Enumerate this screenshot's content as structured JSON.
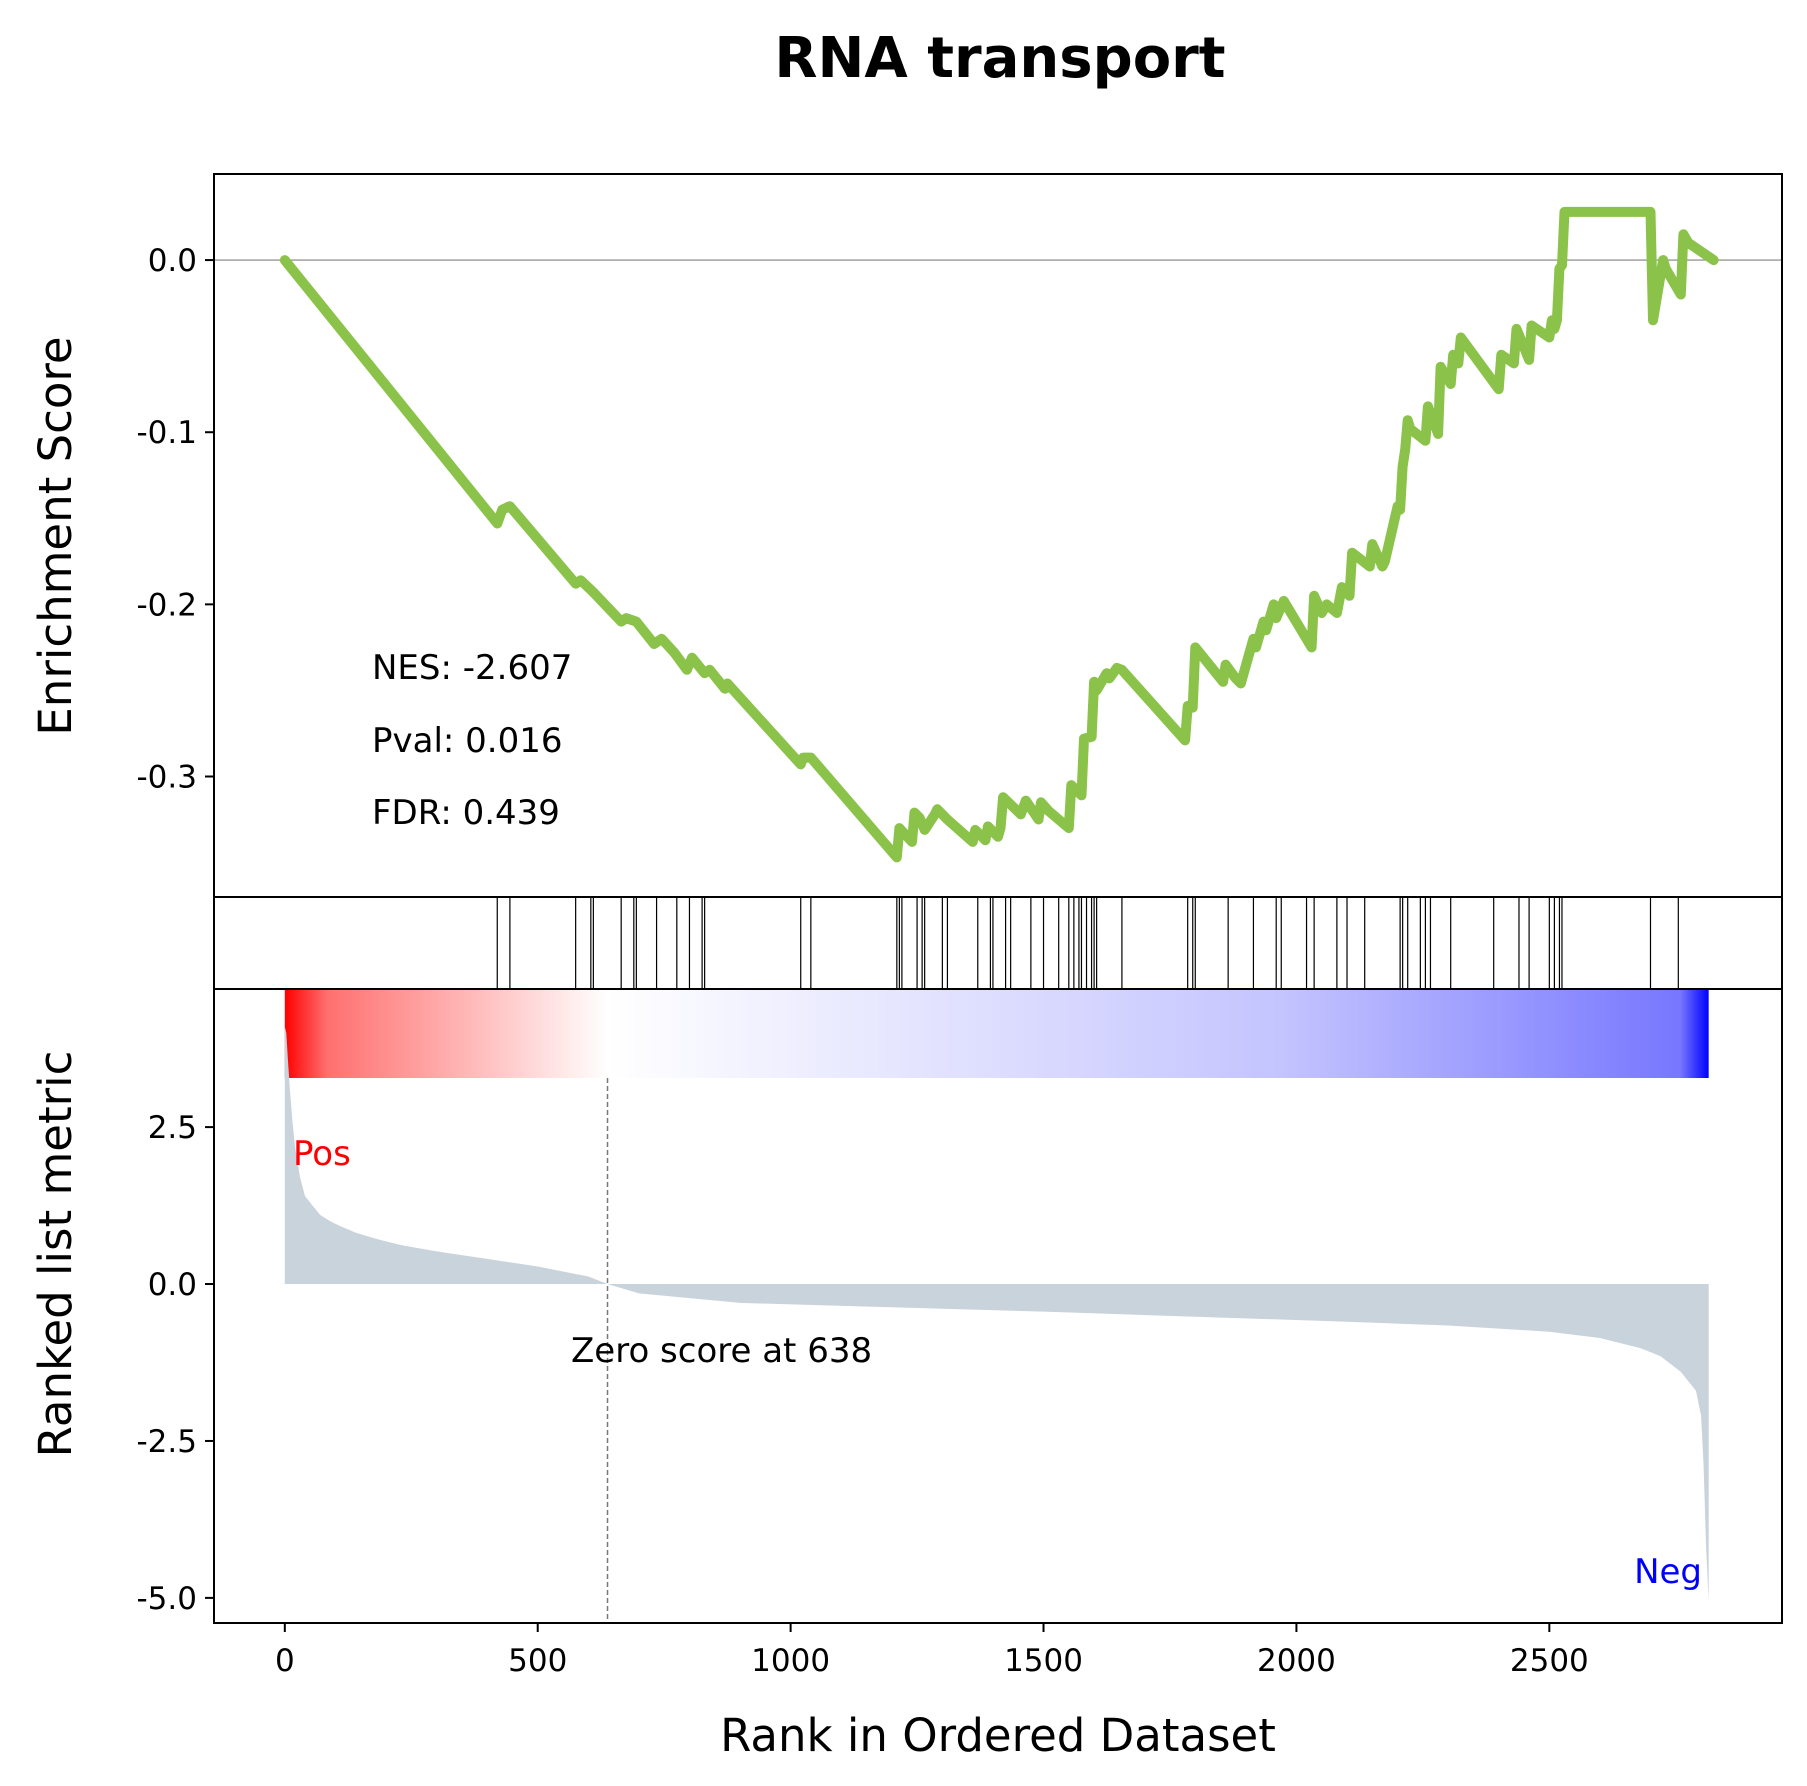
{
  "chart_data": {
    "type": "line",
    "title": "RNA transport",
    "xlabel": "Rank in Ordered Dataset",
    "xlim": [
      -140,
      2960
    ],
    "x_ticks": [
      0,
      500,
      1000,
      1500,
      2000,
      2500
    ],
    "es_panel": {
      "ylabel": "Enrichment Score",
      "ylim": [
        -0.37,
        0.05
      ],
      "y_ticks": [
        0.0,
        -0.1,
        -0.2,
        -0.3
      ],
      "y_tick_labels": [
        "0.0",
        "-0.1",
        "-0.2",
        "-0.3"
      ],
      "line_color": "#8bc34a",
      "series": [
        {
          "x": [
            0,
            420,
            430,
            445,
            575,
            585,
            610,
            665,
            675,
            695,
            730,
            745,
            770,
            795,
            805,
            830,
            840,
            870,
            875,
            1020,
            1025,
            1040,
            1210,
            1215,
            1240,
            1245,
            1255,
            1265,
            1285,
            1290,
            1310,
            1360,
            1365,
            1385,
            1390,
            1410,
            1415,
            1420,
            1455,
            1465,
            1490,
            1495,
            1510,
            1550,
            1555,
            1575,
            1580,
            1595,
            1600,
            1605,
            1625,
            1630,
            1645,
            1655,
            1780,
            1785,
            1795,
            1800,
            1855,
            1860,
            1880,
            1890,
            1915,
            1920,
            1935,
            1940,
            1955,
            1960,
            1975,
            2030,
            2035,
            2050,
            2060,
            2080,
            2090,
            2105,
            2110,
            2145,
            2150,
            2170,
            2175,
            2200,
            2205,
            2210,
            2215,
            2220,
            2225,
            2255,
            2260,
            2280,
            2285,
            2305,
            2310,
            2320,
            2325,
            2400,
            2405,
            2430,
            2435,
            2460,
            2465,
            2500,
            2505,
            2510,
            2515,
            2520,
            2525,
            2530,
            2700,
            2705,
            2725,
            2730,
            2760,
            2765,
            2775,
            2825
          ],
          "y": [
            0.0,
            -0.153,
            -0.145,
            -0.143,
            -0.188,
            -0.186,
            -0.193,
            -0.21,
            -0.208,
            -0.21,
            -0.223,
            -0.22,
            -0.228,
            -0.238,
            -0.231,
            -0.24,
            -0.238,
            -0.249,
            -0.246,
            -0.293,
            -0.289,
            -0.289,
            -0.347,
            -0.33,
            -0.338,
            -0.321,
            -0.324,
            -0.331,
            -0.322,
            -0.319,
            -0.325,
            -0.338,
            -0.331,
            -0.337,
            -0.329,
            -0.335,
            -0.33,
            -0.312,
            -0.322,
            -0.314,
            -0.325,
            -0.315,
            -0.32,
            -0.33,
            -0.305,
            -0.311,
            -0.278,
            -0.277,
            -0.245,
            -0.25,
            -0.24,
            -0.243,
            -0.237,
            -0.238,
            -0.279,
            -0.259,
            -0.26,
            -0.225,
            -0.245,
            -0.235,
            -0.243,
            -0.246,
            -0.22,
            -0.225,
            -0.21,
            -0.215,
            -0.2,
            -0.208,
            -0.198,
            -0.225,
            -0.195,
            -0.205,
            -0.2,
            -0.205,
            -0.19,
            -0.195,
            -0.17,
            -0.178,
            -0.165,
            -0.178,
            -0.175,
            -0.143,
            -0.145,
            -0.12,
            -0.11,
            -0.093,
            -0.098,
            -0.105,
            -0.085,
            -0.101,
            -0.062,
            -0.072,
            -0.055,
            -0.06,
            -0.045,
            -0.075,
            -0.055,
            -0.06,
            -0.04,
            -0.058,
            -0.038,
            -0.045,
            -0.035,
            -0.04,
            -0.035,
            -0.005,
            -0.003,
            0.028,
            0.028,
            -0.035,
            0.0,
            -0.005,
            -0.02,
            0.015,
            0.01,
            0.0
          ]
        }
      ]
    },
    "stats": {
      "nes": "NES: -2.607",
      "pval": "Pval: 0.016",
      "fdr": "FDR: 0.439"
    },
    "hits": [
      420,
      445,
      575,
      605,
      610,
      665,
      690,
      695,
      735,
      775,
      800,
      825,
      830,
      1020,
      1040,
      1210,
      1215,
      1220,
      1250,
      1260,
      1265,
      1300,
      1310,
      1370,
      1395,
      1400,
      1425,
      1435,
      1475,
      1500,
      1530,
      1550,
      1560,
      1570,
      1575,
      1585,
      1595,
      1600,
      1605,
      1655,
      1785,
      1795,
      1800,
      1865,
      1915,
      1960,
      1970,
      2020,
      2035,
      2080,
      2100,
      2135,
      2205,
      2210,
      2220,
      2245,
      2255,
      2265,
      2305,
      2390,
      2440,
      2460,
      2500,
      2510,
      2520,
      2525,
      2700,
      2755
    ],
    "heat_colors": {
      "pos": "#ff0000",
      "zero": "#ffffff",
      "neg": "#0000ff"
    },
    "metric_panel": {
      "ylabel": "Ranked list metric",
      "ylim": [
        -5.4,
        4.7
      ],
      "y_ticks": [
        2.5,
        0.0,
        -2.5,
        -5.0
      ],
      "y_tick_labels": [
        "2.5",
        "0.0",
        "-2.5",
        "-5.0"
      ],
      "fill_color": "#c9d3dc",
      "profile": {
        "x": [
          0,
          3,
          6,
          10,
          15,
          20,
          30,
          40,
          55,
          70,
          90,
          110,
          140,
          180,
          230,
          300,
          400,
          500,
          600,
          638,
          700,
          900,
          1200,
          1500,
          1800,
          2100,
          2300,
          2500,
          2600,
          2680,
          2720,
          2760,
          2790,
          2800,
          2805,
          2810,
          2815
        ],
        "y": [
          4.1,
          4.0,
          3.6,
          3.1,
          2.6,
          2.2,
          1.7,
          1.4,
          1.25,
          1.1,
          1.0,
          0.92,
          0.82,
          0.72,
          0.62,
          0.52,
          0.4,
          0.28,
          0.12,
          0.0,
          -0.15,
          -0.3,
          -0.37,
          -0.44,
          -0.52,
          -0.6,
          -0.66,
          -0.76,
          -0.86,
          -1.02,
          -1.15,
          -1.4,
          -1.7,
          -2.1,
          -2.9,
          -4.2,
          -5.05
        ]
      },
      "zero_cross": 638,
      "zero_label": "Zero score at 638",
      "pos_label": "Pos",
      "neg_label": "Neg",
      "pos_color": "#ff0000",
      "neg_color": "#0000ff"
    }
  }
}
